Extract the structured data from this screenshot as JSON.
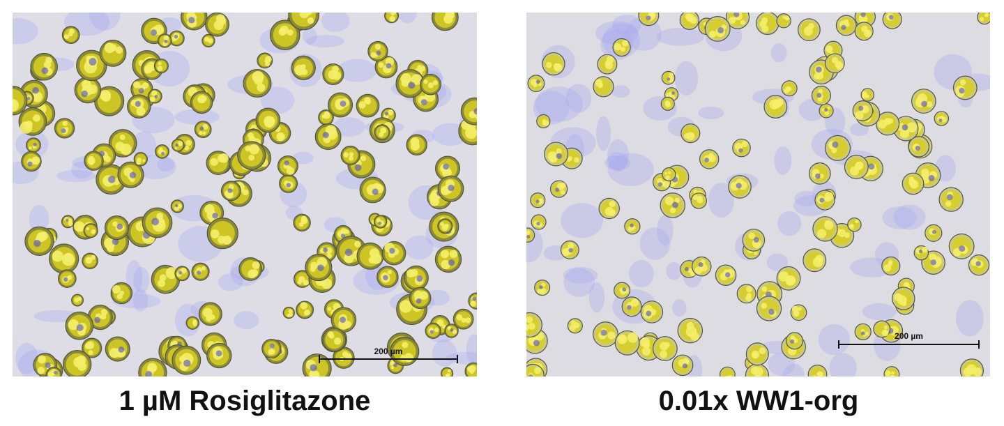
{
  "panels": [
    {
      "caption": "1 µM Rosiglitazone",
      "scale_bar": "200 µm"
    },
    {
      "caption": "0.01x WW1-org",
      "scale_bar": "200 µm"
    }
  ],
  "colors": {
    "lipid": "#e8dc20",
    "nuclei": "#6a6ae0",
    "background": "#dedde6"
  }
}
